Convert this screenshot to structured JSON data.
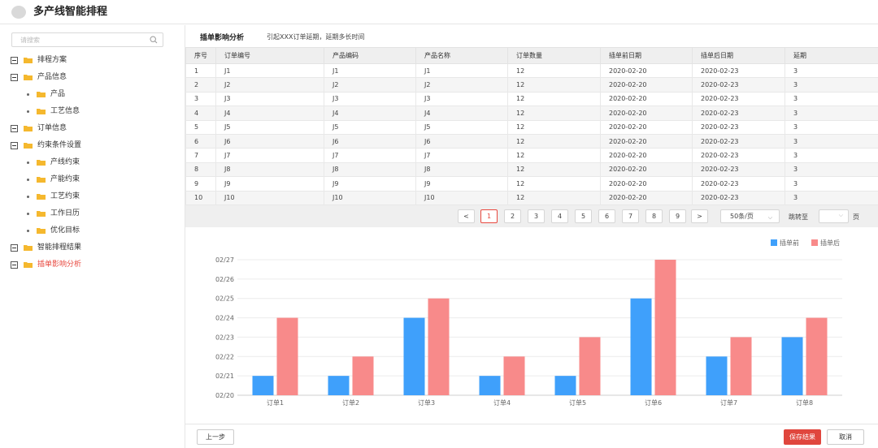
{
  "app": {
    "title": "多产线智能排程"
  },
  "sidebar": {
    "search_placeholder": "请搜索",
    "items": [
      {
        "label": "排程方案",
        "level": 0
      },
      {
        "label": "产品信息",
        "level": 0
      },
      {
        "label": "产品",
        "level": 1
      },
      {
        "label": "工艺信息",
        "level": 1
      },
      {
        "label": "订单信息",
        "level": 0
      },
      {
        "label": "约束条件设置",
        "level": 0
      },
      {
        "label": "产线约束",
        "level": 1
      },
      {
        "label": "产能约束",
        "level": 1
      },
      {
        "label": "工艺约束",
        "level": 1
      },
      {
        "label": "工作日历",
        "level": 1
      },
      {
        "label": "优化目标",
        "level": 1
      },
      {
        "label": "智能排程结果",
        "level": 0
      },
      {
        "label": "插单影响分析",
        "level": 0,
        "active": true
      }
    ]
  },
  "section": {
    "title": "插单影响分析",
    "description": "引起XXX订单延期，延期多长时间"
  },
  "table": {
    "headers": [
      "序号",
      "订单编号",
      "产品编码",
      "产品名称",
      "订单数量",
      "插单前日期",
      "插单后日期",
      "延期"
    ],
    "rows": [
      [
        "1",
        "J1",
        "J1",
        "J1",
        "12",
        "2020-02-20",
        "2020-02-23",
        "3"
      ],
      [
        "2",
        "J2",
        "J2",
        "J2",
        "12",
        "2020-02-20",
        "2020-02-23",
        "3"
      ],
      [
        "3",
        "J3",
        "J3",
        "J3",
        "12",
        "2020-02-20",
        "2020-02-23",
        "3"
      ],
      [
        "4",
        "J4",
        "J4",
        "J4",
        "12",
        "2020-02-20",
        "2020-02-23",
        "3"
      ],
      [
        "5",
        "J5",
        "J5",
        "J5",
        "12",
        "2020-02-20",
        "2020-02-23",
        "3"
      ],
      [
        "6",
        "J6",
        "J6",
        "J6",
        "12",
        "2020-02-20",
        "2020-02-23",
        "3"
      ],
      [
        "7",
        "J7",
        "J7",
        "J7",
        "12",
        "2020-02-20",
        "2020-02-23",
        "3"
      ],
      [
        "8",
        "J8",
        "J8",
        "J8",
        "12",
        "2020-02-20",
        "2020-02-23",
        "3"
      ],
      [
        "9",
        "J9",
        "J9",
        "J9",
        "12",
        "2020-02-20",
        "2020-02-23",
        "3"
      ],
      [
        "10",
        "J10",
        "J10",
        "J10",
        "12",
        "2020-02-20",
        "2020-02-23",
        "3"
      ]
    ]
  },
  "pagination": {
    "prev": "<",
    "next": ">",
    "pages": [
      "1",
      "2",
      "3",
      "4",
      "5",
      "6",
      "7",
      "8",
      "9"
    ],
    "current": "1",
    "page_size": "50条/页",
    "jump_label": "跳转至",
    "page_unit": "页"
  },
  "chart_data": {
    "type": "bar",
    "categories": [
      "订单1",
      "订单2",
      "订单3",
      "订单4",
      "订单5",
      "订单6",
      "订单7",
      "订单8"
    ],
    "series": [
      {
        "name": "插单前",
        "color": "#3fa0fb",
        "values": [
          "02/21",
          "02/21",
          "02/24",
          "02/21",
          "02/21",
          "02/25",
          "02/22",
          "02/23"
        ]
      },
      {
        "name": "插单后",
        "color": "#f88a8a",
        "values": [
          "02/24",
          "02/22",
          "02/25",
          "02/22",
          "02/23",
          "02/27",
          "02/23",
          "02/24"
        ]
      }
    ],
    "y_ticks": [
      "02/20",
      "02/21",
      "02/22",
      "02/23",
      "02/24",
      "02/25",
      "02/26",
      "02/27"
    ],
    "legend_position": "top-right",
    "grid": true
  },
  "footer": {
    "prev": "上一步",
    "save": "保存结果",
    "cancel": "取消"
  },
  "colors": {
    "accent": "#e0463d",
    "folder": "#f5b82e",
    "bar_before": "#3fa0fb",
    "bar_after": "#f88a8a"
  }
}
